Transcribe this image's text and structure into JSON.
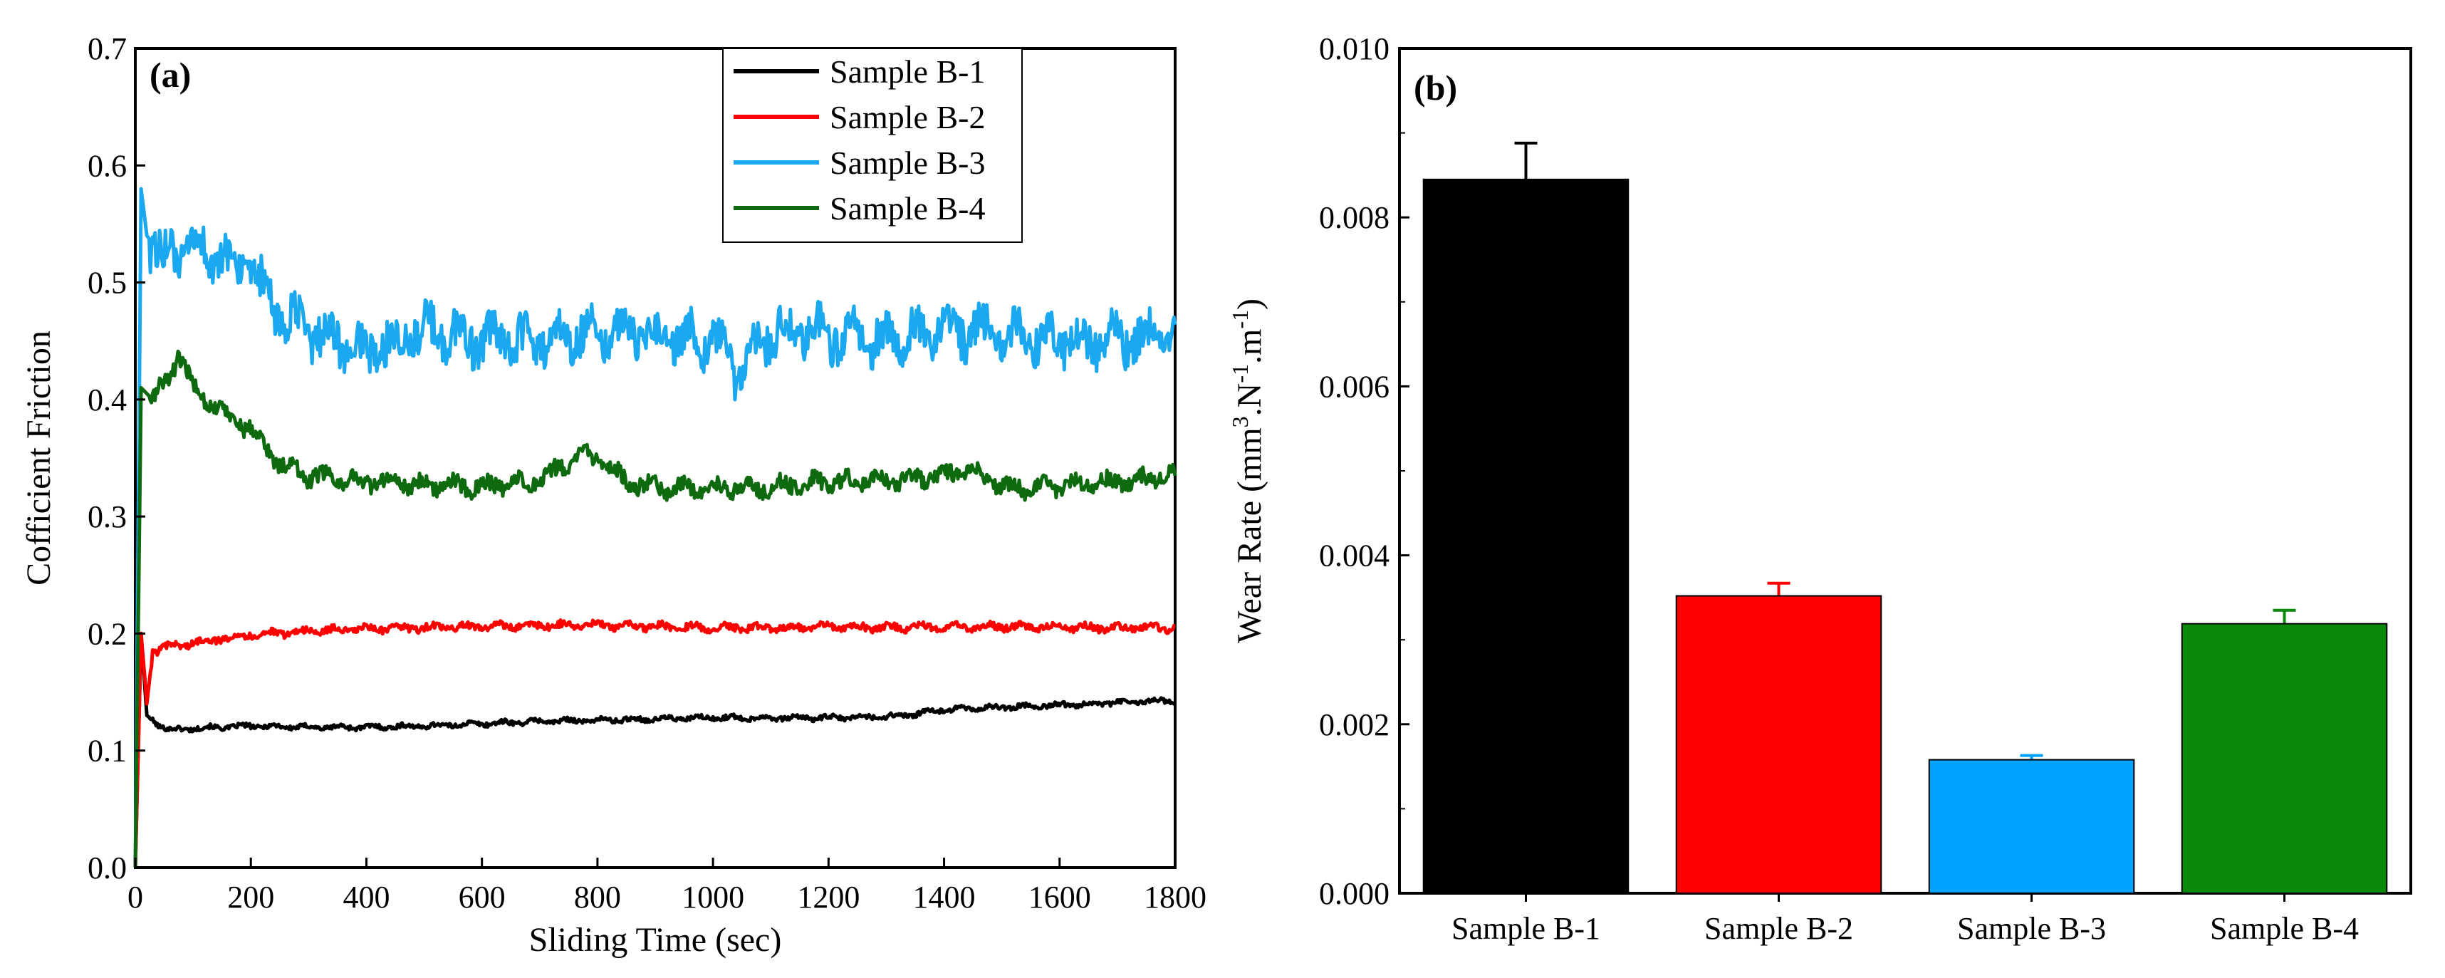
{
  "chart_data": [
    {
      "type": "line",
      "panel_label": "(a)",
      "xlabel": "Sliding Time (sec)",
      "ylabel": "Cofficient Friction",
      "xlim": [
        0,
        1800
      ],
      "ylim": [
        0,
        0.7
      ],
      "xticks": [
        "0",
        "200",
        "400",
        "600",
        "800",
        "1000",
        "1200",
        "1400",
        "1600",
        "1800"
      ],
      "yticks": [
        "0.0",
        "0.1",
        "0.2",
        "0.3",
        "0.4",
        "0.5",
        "0.6",
        "0.7"
      ],
      "legend_position": "top-right",
      "series": [
        {
          "name": "Sample B-1",
          "color": "#000000",
          "x": [
            0,
            10,
            20,
            40,
            60,
            80,
            100,
            150,
            200,
            300,
            400,
            500,
            600,
            700,
            800,
            900,
            1000,
            1100,
            1200,
            1300,
            1350,
            1400,
            1500,
            1600,
            1700,
            1800
          ],
          "y": [
            0.0,
            0.2,
            0.13,
            0.122,
            0.118,
            0.118,
            0.119,
            0.12,
            0.121,
            0.12,
            0.12,
            0.121,
            0.123,
            0.125,
            0.126,
            0.127,
            0.128,
            0.128,
            0.128,
            0.129,
            0.131,
            0.135,
            0.137,
            0.139,
            0.141,
            0.143
          ]
        },
        {
          "name": "Sample B-2",
          "color": "#ff0000",
          "x": [
            0,
            10,
            20,
            30,
            50,
            100,
            150,
            200,
            300,
            400,
            500,
            600,
            700,
            800,
            900,
            1000,
            1100,
            1200,
            1300,
            1400,
            1500,
            1600,
            1700,
            1800
          ],
          "y": [
            0.0,
            0.2,
            0.14,
            0.185,
            0.188,
            0.192,
            0.196,
            0.199,
            0.202,
            0.204,
            0.205,
            0.206,
            0.207,
            0.207,
            0.206,
            0.205,
            0.205,
            0.206,
            0.205,
            0.206,
            0.206,
            0.205,
            0.205,
            0.205
          ]
        },
        {
          "name": "Sample B-3",
          "color": "#1aa8f0",
          "x": [
            0,
            10,
            20,
            50,
            100,
            150,
            200,
            250,
            300,
            350,
            400,
            500,
            600,
            700,
            800,
            900,
            1000,
            1050,
            1100,
            1200,
            1300,
            1400,
            1500,
            1600,
            1700,
            1800
          ],
          "y": [
            0.0,
            0.58,
            0.54,
            0.52,
            0.53,
            0.52,
            0.51,
            0.47,
            0.46,
            0.45,
            0.44,
            0.46,
            0.45,
            0.45,
            0.46,
            0.455,
            0.45,
            0.42,
            0.46,
            0.455,
            0.45,
            0.46,
            0.455,
            0.45,
            0.45,
            0.455
          ]
        },
        {
          "name": "Sample B-4",
          "color": "#0e6a0e",
          "x": [
            0,
            10,
            30,
            60,
            75,
            100,
            150,
            200,
            250,
            300,
            400,
            500,
            600,
            700,
            780,
            850,
            900,
            1000,
            1100,
            1200,
            1300,
            1400,
            1450,
            1500,
            1600,
            1700,
            1800
          ],
          "y": [
            0.0,
            0.41,
            0.4,
            0.42,
            0.44,
            0.41,
            0.39,
            0.375,
            0.345,
            0.335,
            0.33,
            0.328,
            0.325,
            0.33,
            0.355,
            0.33,
            0.325,
            0.325,
            0.325,
            0.33,
            0.33,
            0.335,
            0.34,
            0.325,
            0.325,
            0.33,
            0.335
          ]
        }
      ]
    },
    {
      "type": "bar",
      "panel_label": "(b)",
      "ylabel": "Wear Rate",
      "ylabel_unit_parts": [
        "mm",
        "3",
        ".N",
        "-1",
        ".m",
        "-1"
      ],
      "ylim": [
        0,
        0.01
      ],
      "yticks": [
        "0.000",
        "0.002",
        "0.004",
        "0.006",
        "0.008",
        "0.010"
      ],
      "categories": [
        "Sample B-1",
        "Sample B-2",
        "Sample B-3",
        "Sample B-4"
      ],
      "values": [
        0.00845,
        0.00352,
        0.00158,
        0.00319
      ],
      "errors": [
        0.00043,
        0.00015,
        5e-05,
        0.00016
      ],
      "colors": [
        "#000000",
        "#ff0000",
        "#00a2ff",
        "#0a8a0a"
      ]
    }
  ]
}
